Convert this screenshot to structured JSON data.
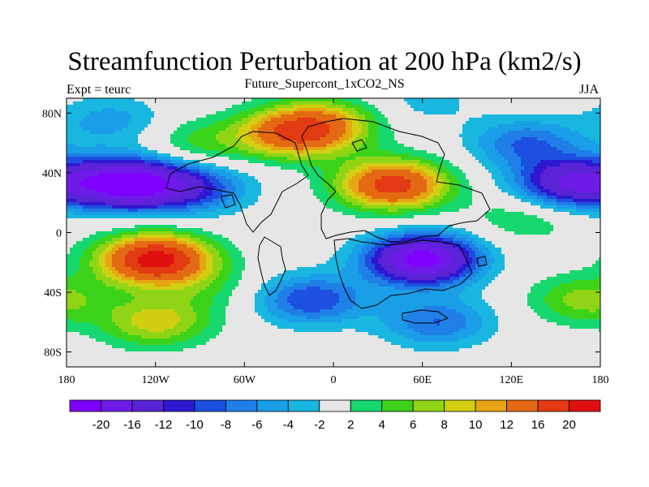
{
  "title": "Streamfunction Perturbation at 200 hPa (km2/s)",
  "subtitle": "Future_Supercont_1xCO2_NS",
  "left_label": "Expt = teurc",
  "right_label": "JJA",
  "axes": {
    "x_ticks": [
      {
        "value": -180,
        "label": "180"
      },
      {
        "value": -120,
        "label": "120W"
      },
      {
        "value": -60,
        "label": "60W"
      },
      {
        "value": 0,
        "label": "0"
      },
      {
        "value": 60,
        "label": "60E"
      },
      {
        "value": 120,
        "label": "120E"
      },
      {
        "value": 180,
        "label": "180"
      }
    ],
    "y_ticks": [
      {
        "value": 80,
        "label": "80N"
      },
      {
        "value": 40,
        "label": "40N"
      },
      {
        "value": 0,
        "label": "0"
      },
      {
        "value": -40,
        "label": "40S"
      },
      {
        "value": -80,
        "label": "80S"
      }
    ],
    "lon_range": [
      -180,
      180
    ],
    "lat_range": [
      -90,
      90
    ]
  },
  "colorbar": {
    "colors": [
      "#7f00ff",
      "#6e1be8",
      "#5a23d6",
      "#2d18d2",
      "#1d4fe0",
      "#1f7fe6",
      "#1a9ee8",
      "#19b7e0",
      "#e6e6e6",
      "#16d86f",
      "#3dd21a",
      "#8fd516",
      "#d2cf12",
      "#e6a512",
      "#e36a12",
      "#e23a12",
      "#e01010"
    ],
    "labels": [
      "-20",
      "-16",
      "-12",
      "-10",
      "-8",
      "-6",
      "-4",
      "-2",
      "2",
      "4",
      "6",
      "8",
      "10",
      "12",
      "16",
      "20"
    ]
  },
  "chart_data": {
    "type": "heatmap",
    "title": "Streamfunction Perturbation at 200 hPa (km2/s)",
    "subtitle": "Future_Supercont_1xCO2_NS",
    "xlabel": "",
    "ylabel": "",
    "contour_levels": [
      -20,
      -16,
      -12,
      -10,
      -8,
      -6,
      -4,
      -2,
      2,
      4,
      6,
      8,
      10,
      12,
      16,
      20
    ],
    "xlim": [
      -180,
      180
    ],
    "ylim": [
      -90,
      90
    ],
    "features": [
      {
        "lon": -140,
        "lat": 33,
        "value": -22
      },
      {
        "lon": -95,
        "lat": 30,
        "value": -10
      },
      {
        "lon": 40,
        "lat": 32,
        "value": 18
      },
      {
        "lon": -25,
        "lat": 67,
        "value": 16
      },
      {
        "lon": 60,
        "lat": -18,
        "value": -22
      },
      {
        "lon": -120,
        "lat": -18,
        "value": 22
      },
      {
        "lon": -15,
        "lat": -45,
        "value": -10
      },
      {
        "lon": 70,
        "lat": -60,
        "value": -8
      },
      {
        "lon": -120,
        "lat": -60,
        "value": 9
      },
      {
        "lon": 160,
        "lat": 33,
        "value": -16
      },
      {
        "lon": 130,
        "lat": 60,
        "value": -8
      },
      {
        "lon": -150,
        "lat": 75,
        "value": -5
      },
      {
        "lon": 170,
        "lat": -45,
        "value": 7
      },
      {
        "lon": -90,
        "lat": 60,
        "value": 5
      },
      {
        "lon": 130,
        "lat": 10,
        "value": 4
      },
      {
        "lon": 60,
        "lat": 88,
        "value": -3
      },
      {
        "lon": -85,
        "lat": -38,
        "value": 3
      },
      {
        "lon": 0,
        "lat": 75,
        "value": 6
      }
    ]
  }
}
